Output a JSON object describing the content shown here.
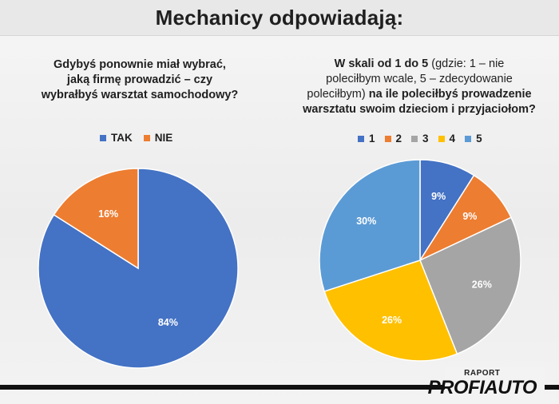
{
  "header": {
    "title": "Mechanicy odpowiadają:"
  },
  "left_question": {
    "line1": "Gdybyś ponownie miał wybrać,",
    "line2": "jaką firmę prowadzić – czy",
    "line3": "wybrałbyś warsztat samochodowy?"
  },
  "right_question": {
    "line1_bold": "W skali od 1 do 5",
    "line1_norm": " (gdzie: 1 – nie",
    "line2": "poleciłbym wcale, 5 – zdecydowanie",
    "line3_norm": "poleciłbym)",
    "line3_bold": " na ile poleciłbyś prowadzenie",
    "line4": "warsztatu swoim dzieciom i przyjaciołom?"
  },
  "colors": {
    "blue": "#4472c4",
    "orange": "#ed7d31",
    "gray": "#a5a5a5",
    "yellow": "#ffc000",
    "lightblue": "#5b9bd5"
  },
  "chart_data": [
    {
      "type": "pie",
      "title": "Gdybyś ponownie miał wybrać, jaką firmę prowadzić – czy wybrałbyś warsztat samochodowy?",
      "legend": "top",
      "categories": [
        "TAK",
        "NIE"
      ],
      "values": [
        84,
        16
      ],
      "labels": [
        "84%",
        "16%"
      ],
      "colors": [
        "#4472c4",
        "#ed7d31"
      ]
    },
    {
      "type": "pie",
      "title": "W skali od 1 do 5 (gdzie: 1 – nie polecIłbym wcale, 5 – zdecydowanie poleciłbym) na ile poleciłbyś prowadzenie warsztatu swoim dzieciom i przyjaciołom?",
      "legend": "top",
      "categories": [
        "1",
        "2",
        "3",
        "4",
        "5"
      ],
      "values": [
        9,
        9,
        26,
        26,
        30
      ],
      "labels": [
        "9%",
        "9%",
        "26%",
        "26%",
        "30%"
      ],
      "colors": [
        "#4472c4",
        "#ed7d31",
        "#a5a5a5",
        "#ffc000",
        "#5b9bd5"
      ]
    }
  ],
  "brand": {
    "raport": "RAPORT",
    "logo": "PROFIAUTO"
  }
}
